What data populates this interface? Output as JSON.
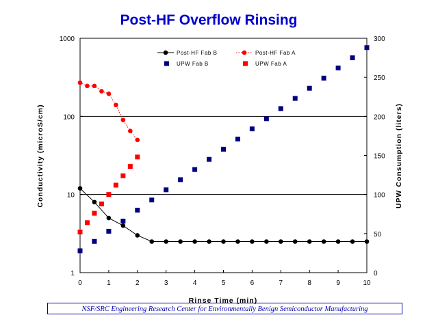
{
  "page_title": "Post-HF Overflow Rinsing",
  "footer": "NSF/SRC Engineering Research Center for Environmentally Benign Semiconductor Manufacturing",
  "chart_data": {
    "type": "scatter",
    "title": "Post-HF Overflow Rinsing",
    "xlabel": "Rinse Time (min)",
    "ylabel_left": "Conductivity (microS/cm)",
    "ylabel_right": "UPW Consumption (liters)",
    "xlim": [
      0,
      10
    ],
    "ylim_left": [
      1,
      1000
    ],
    "ylim_right": [
      0,
      300
    ],
    "left_scale": "log",
    "x_ticks": [
      "0",
      "1",
      "2",
      "3",
      "4",
      "5",
      "6",
      "7",
      "8",
      "9",
      "10"
    ],
    "y_left_ticks": [
      "1",
      "10",
      "100",
      "1000"
    ],
    "y_right_ticks": [
      "0",
      "50",
      "100",
      "150",
      "200",
      "250",
      "300"
    ],
    "legend_position": "top",
    "colors": {
      "fab_b": "#000000",
      "fab_a": "#ff0000",
      "upw_b": "#000080",
      "upw_a": "#ff0000",
      "title": "#0000cc"
    },
    "series": [
      {
        "name": "Post-HF Fab B",
        "axis": "left",
        "style": "line-circle",
        "x": [
          0,
          0.5,
          1,
          1.5,
          2,
          2.5,
          3,
          3.5,
          4,
          4.5,
          5,
          5.5,
          6,
          6.5,
          7,
          7.5,
          8,
          8.5,
          9,
          9.5,
          10
        ],
        "y": [
          12,
          8,
          5,
          4,
          3,
          2.5,
          2.5,
          2.5,
          2.5,
          2.5,
          2.5,
          2.5,
          2.5,
          2.5,
          2.5,
          2.5,
          2.5,
          2.5,
          2.5,
          2.5,
          2.5
        ]
      },
      {
        "name": "Post-HF Fab A",
        "axis": "left",
        "style": "dotted-circle",
        "x": [
          0,
          0.25,
          0.5,
          0.75,
          1,
          1.25,
          1.5,
          1.75,
          2
        ],
        "y": [
          270,
          245,
          245,
          210,
          195,
          140,
          90,
          65,
          50
        ]
      },
      {
        "name": "UPW Fab B",
        "axis": "right",
        "style": "square",
        "x": [
          0,
          0.5,
          1,
          1.5,
          2,
          2.5,
          3,
          3.5,
          4,
          4.5,
          5,
          5.5,
          6,
          6.5,
          7,
          7.5,
          8,
          8.5,
          9,
          9.5,
          10
        ],
        "y": [
          28,
          40,
          53,
          66,
          80,
          93,
          106,
          119,
          132,
          145,
          158,
          171,
          184,
          197,
          210,
          223,
          236,
          249,
          262,
          275,
          288
        ]
      },
      {
        "name": "UPW Fab A",
        "axis": "right",
        "style": "square",
        "x": [
          0,
          0.25,
          0.5,
          0.75,
          1,
          1.25,
          1.5,
          1.75,
          2
        ],
        "y": [
          52,
          64,
          76,
          88,
          100,
          112,
          124,
          136,
          148
        ]
      }
    ]
  }
}
